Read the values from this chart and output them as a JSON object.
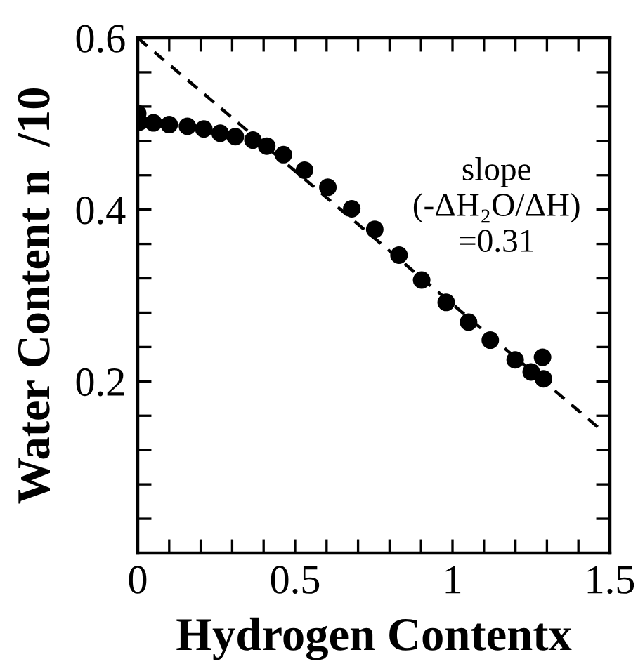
{
  "chart_data": {
    "type": "scatter",
    "xlabel": "Hydrogen Contentx",
    "ylabel": "Water Content n  /10",
    "xlim": [
      0,
      1.5
    ],
    "ylim": [
      0,
      0.6
    ],
    "xticks": [
      0,
      {
        "value": 0.1,
        "label": null
      },
      {
        "value": 0.2,
        "label": null
      },
      {
        "value": 0.3,
        "label": null
      },
      {
        "value": 0.4,
        "label": null
      },
      0.5,
      {
        "value": 0.6,
        "label": null
      },
      {
        "value": 0.7,
        "label": null
      },
      {
        "value": 0.8,
        "label": null
      },
      {
        "value": 0.9,
        "label": null
      },
      1,
      {
        "value": 1.1,
        "label": null
      },
      {
        "value": 1.2,
        "label": null
      },
      {
        "value": 1.3,
        "label": null
      },
      {
        "value": 1.4,
        "label": null
      },
      1.5
    ],
    "yticks": [
      {
        "value": 0,
        "label": null
      },
      {
        "value": 0.04,
        "label": null
      },
      {
        "value": 0.08,
        "label": null
      },
      {
        "value": 0.12,
        "label": null
      },
      {
        "value": 0.16,
        "label": null
      },
      0.2,
      {
        "value": 0.24,
        "label": null
      },
      {
        "value": 0.28,
        "label": null
      },
      {
        "value": 0.32,
        "label": null
      },
      {
        "value": 0.36,
        "label": null
      },
      0.4,
      {
        "value": 0.44,
        "label": null
      },
      {
        "value": 0.48,
        "label": null
      },
      {
        "value": 0.52,
        "label": null
      },
      {
        "value": 0.56,
        "label": null
      },
      0.6
    ],
    "grid": false,
    "legend": false,
    "marker": "circle",
    "series": [
      {
        "color": "#000000",
        "x": [
          0.0,
          0.005,
          0.05,
          0.1,
          0.158,
          0.21,
          0.262,
          0.31,
          0.366,
          0.41,
          0.463,
          0.53,
          0.604,
          0.68,
          0.753,
          0.83,
          0.902,
          0.98,
          1.051,
          1.12,
          1.199,
          1.25,
          1.286,
          1.289
        ],
        "values": [
          0.512,
          0.502,
          0.501,
          0.499,
          0.497,
          0.494,
          0.489,
          0.485,
          0.481,
          0.474,
          0.464,
          0.446,
          0.426,
          0.401,
          0.377,
          0.347,
          0.318,
          0.292,
          0.269,
          0.248,
          0.225,
          0.211,
          0.228,
          0.203
        ]
      },
      {
        "type": "line",
        "color": "#000000",
        "line_style": "dashed",
        "marker": "none",
        "x": [
          0,
          1.48
        ],
        "values": [
          0.6,
          0.141
        ]
      }
    ],
    "annotations": [
      "slope\n(-ΔH₂O/ΔH)\n=0.31"
    ]
  }
}
